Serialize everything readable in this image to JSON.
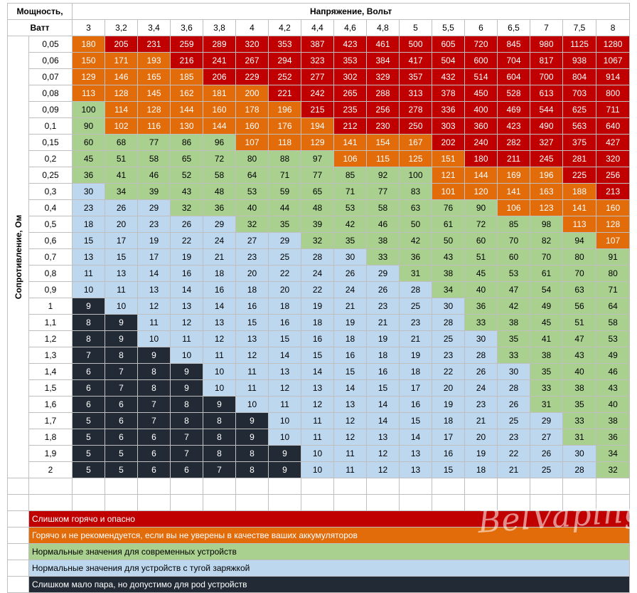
{
  "header": {
    "power_label_line1": "Мощность,",
    "power_label_line2": "Ватт",
    "voltage_title": "Напряжение, Вольт",
    "resistance_title": "Сопротивление, Ом"
  },
  "voltages": [
    "3",
    "3,2",
    "3,4",
    "3,6",
    "3,8",
    "4",
    "4,2",
    "4,4",
    "4,6",
    "4,8",
    "5",
    "5,5",
    "6",
    "6,5",
    "7",
    "7,5",
    "8"
  ],
  "rows": [
    {
      "r": "0,05",
      "v": [
        "180",
        "205",
        "231",
        "259",
        "289",
        "320",
        "353",
        "387",
        "423",
        "461",
        "500",
        "605",
        "720",
        "845",
        "980",
        "1125",
        "1280"
      ],
      "c": [
        "o",
        "r",
        "r",
        "r",
        "r",
        "r",
        "r",
        "r",
        "r",
        "r",
        "r",
        "r",
        "r",
        "r",
        "r",
        "r",
        "r"
      ]
    },
    {
      "r": "0,06",
      "v": [
        "150",
        "171",
        "193",
        "216",
        "241",
        "267",
        "294",
        "323",
        "353",
        "384",
        "417",
        "504",
        "600",
        "704",
        "817",
        "938",
        "1067"
      ],
      "c": [
        "o",
        "o",
        "o",
        "r",
        "r",
        "r",
        "r",
        "r",
        "r",
        "r",
        "r",
        "r",
        "r",
        "r",
        "r",
        "r",
        "r"
      ]
    },
    {
      "r": "0,07",
      "v": [
        "129",
        "146",
        "165",
        "185",
        "206",
        "229",
        "252",
        "277",
        "302",
        "329",
        "357",
        "432",
        "514",
        "604",
        "700",
        "804",
        "914"
      ],
      "c": [
        "o",
        "o",
        "o",
        "o",
        "r",
        "r",
        "r",
        "r",
        "r",
        "r",
        "r",
        "r",
        "r",
        "r",
        "r",
        "r",
        "r"
      ]
    },
    {
      "r": "0,08",
      "v": [
        "113",
        "128",
        "145",
        "162",
        "181",
        "200",
        "221",
        "242",
        "265",
        "288",
        "313",
        "378",
        "450",
        "528",
        "613",
        "703",
        "800"
      ],
      "c": [
        "o",
        "o",
        "o",
        "o",
        "o",
        "o",
        "r",
        "r",
        "r",
        "r",
        "r",
        "r",
        "r",
        "r",
        "r",
        "r",
        "r"
      ]
    },
    {
      "r": "0,09",
      "v": [
        "100",
        "114",
        "128",
        "144",
        "160",
        "178",
        "196",
        "215",
        "235",
        "256",
        "278",
        "336",
        "400",
        "469",
        "544",
        "625",
        "711"
      ],
      "c": [
        "g",
        "o",
        "o",
        "o",
        "o",
        "o",
        "o",
        "r",
        "r",
        "r",
        "r",
        "r",
        "r",
        "r",
        "r",
        "r",
        "r"
      ]
    },
    {
      "r": "0,1",
      "v": [
        "90",
        "102",
        "116",
        "130",
        "144",
        "160",
        "176",
        "194",
        "212",
        "230",
        "250",
        "303",
        "360",
        "423",
        "490",
        "563",
        "640"
      ],
      "c": [
        "g",
        "o",
        "o",
        "o",
        "o",
        "o",
        "o",
        "o",
        "r",
        "r",
        "r",
        "r",
        "r",
        "r",
        "r",
        "r",
        "r"
      ]
    },
    {
      "r": "0,15",
      "v": [
        "60",
        "68",
        "77",
        "86",
        "96",
        "107",
        "118",
        "129",
        "141",
        "154",
        "167",
        "202",
        "240",
        "282",
        "327",
        "375",
        "427"
      ],
      "c": [
        "g",
        "g",
        "g",
        "g",
        "g",
        "o",
        "o",
        "o",
        "o",
        "o",
        "o",
        "r",
        "r",
        "r",
        "r",
        "r",
        "r"
      ]
    },
    {
      "r": "0,2",
      "v": [
        "45",
        "51",
        "58",
        "65",
        "72",
        "80",
        "88",
        "97",
        "106",
        "115",
        "125",
        "151",
        "180",
        "211",
        "245",
        "281",
        "320"
      ],
      "c": [
        "g",
        "g",
        "g",
        "g",
        "g",
        "g",
        "g",
        "g",
        "o",
        "o",
        "o",
        "o",
        "r",
        "r",
        "r",
        "r",
        "r"
      ]
    },
    {
      "r": "0,25",
      "v": [
        "36",
        "41",
        "46",
        "52",
        "58",
        "64",
        "71",
        "77",
        "85",
        "92",
        "100",
        "121",
        "144",
        "169",
        "196",
        "225",
        "256"
      ],
      "c": [
        "g",
        "g",
        "g",
        "g",
        "g",
        "g",
        "g",
        "g",
        "g",
        "g",
        "g",
        "o",
        "o",
        "o",
        "o",
        "r",
        "r"
      ]
    },
    {
      "r": "0,3",
      "v": [
        "30",
        "34",
        "39",
        "43",
        "48",
        "53",
        "59",
        "65",
        "71",
        "77",
        "83",
        "101",
        "120",
        "141",
        "163",
        "188",
        "213"
      ],
      "c": [
        "b",
        "g",
        "g",
        "g",
        "g",
        "g",
        "g",
        "g",
        "g",
        "g",
        "g",
        "o",
        "o",
        "o",
        "o",
        "o",
        "r"
      ]
    },
    {
      "r": "0,4",
      "v": [
        "23",
        "26",
        "29",
        "32",
        "36",
        "40",
        "44",
        "48",
        "53",
        "58",
        "63",
        "76",
        "90",
        "106",
        "123",
        "141",
        "160"
      ],
      "c": [
        "b",
        "b",
        "b",
        "g",
        "g",
        "g",
        "g",
        "g",
        "g",
        "g",
        "g",
        "g",
        "g",
        "o",
        "o",
        "o",
        "o"
      ]
    },
    {
      "r": "0,5",
      "v": [
        "18",
        "20",
        "23",
        "26",
        "29",
        "32",
        "35",
        "39",
        "42",
        "46",
        "50",
        "61",
        "72",
        "85",
        "98",
        "113",
        "128"
      ],
      "c": [
        "b",
        "b",
        "b",
        "b",
        "b",
        "g",
        "g",
        "g",
        "g",
        "g",
        "g",
        "g",
        "g",
        "g",
        "g",
        "o",
        "o"
      ]
    },
    {
      "r": "0,6",
      "v": [
        "15",
        "17",
        "19",
        "22",
        "24",
        "27",
        "29",
        "32",
        "35",
        "38",
        "42",
        "50",
        "60",
        "70",
        "82",
        "94",
        "107"
      ],
      "c": [
        "b",
        "b",
        "b",
        "b",
        "b",
        "b",
        "b",
        "g",
        "g",
        "g",
        "g",
        "g",
        "g",
        "g",
        "g",
        "g",
        "o"
      ]
    },
    {
      "r": "0,7",
      "v": [
        "13",
        "15",
        "17",
        "19",
        "21",
        "23",
        "25",
        "28",
        "30",
        "33",
        "36",
        "43",
        "51",
        "60",
        "70",
        "80",
        "91"
      ],
      "c": [
        "b",
        "b",
        "b",
        "b",
        "b",
        "b",
        "b",
        "b",
        "b",
        "g",
        "g",
        "g",
        "g",
        "g",
        "g",
        "g",
        "g"
      ]
    },
    {
      "r": "0,8",
      "v": [
        "11",
        "13",
        "14",
        "16",
        "18",
        "20",
        "22",
        "24",
        "26",
        "29",
        "31",
        "38",
        "45",
        "53",
        "61",
        "70",
        "80"
      ],
      "c": [
        "b",
        "b",
        "b",
        "b",
        "b",
        "b",
        "b",
        "b",
        "b",
        "b",
        "g",
        "g",
        "g",
        "g",
        "g",
        "g",
        "g"
      ]
    },
    {
      "r": "0,9",
      "v": [
        "10",
        "11",
        "13",
        "14",
        "16",
        "18",
        "20",
        "22",
        "24",
        "26",
        "28",
        "34",
        "40",
        "47",
        "54",
        "63",
        "71"
      ],
      "c": [
        "b",
        "b",
        "b",
        "b",
        "b",
        "b",
        "b",
        "b",
        "b",
        "b",
        "b",
        "g",
        "g",
        "g",
        "g",
        "g",
        "g"
      ]
    },
    {
      "r": "1",
      "v": [
        "9",
        "10",
        "12",
        "13",
        "14",
        "16",
        "18",
        "19",
        "21",
        "23",
        "25",
        "30",
        "36",
        "42",
        "49",
        "56",
        "64"
      ],
      "c": [
        "d",
        "b",
        "b",
        "b",
        "b",
        "b",
        "b",
        "b",
        "b",
        "b",
        "b",
        "b",
        "g",
        "g",
        "g",
        "g",
        "g"
      ]
    },
    {
      "r": "1,1",
      "v": [
        "8",
        "9",
        "11",
        "12",
        "13",
        "15",
        "16",
        "18",
        "19",
        "21",
        "23",
        "28",
        "33",
        "38",
        "45",
        "51",
        "58"
      ],
      "c": [
        "d",
        "d",
        "b",
        "b",
        "b",
        "b",
        "b",
        "b",
        "b",
        "b",
        "b",
        "b",
        "g",
        "g",
        "g",
        "g",
        "g"
      ]
    },
    {
      "r": "1,2",
      "v": [
        "8",
        "9",
        "10",
        "11",
        "12",
        "13",
        "15",
        "16",
        "18",
        "19",
        "21",
        "25",
        "30",
        "35",
        "41",
        "47",
        "53"
      ],
      "c": [
        "d",
        "d",
        "b",
        "b",
        "b",
        "b",
        "b",
        "b",
        "b",
        "b",
        "b",
        "b",
        "b",
        "g",
        "g",
        "g",
        "g"
      ]
    },
    {
      "r": "1,3",
      "v": [
        "7",
        "8",
        "9",
        "10",
        "11",
        "12",
        "14",
        "15",
        "16",
        "18",
        "19",
        "23",
        "28",
        "33",
        "38",
        "43",
        "49"
      ],
      "c": [
        "d",
        "d",
        "d",
        "b",
        "b",
        "b",
        "b",
        "b",
        "b",
        "b",
        "b",
        "b",
        "b",
        "g",
        "g",
        "g",
        "g"
      ]
    },
    {
      "r": "1,4",
      "v": [
        "6",
        "7",
        "8",
        "9",
        "10",
        "11",
        "13",
        "14",
        "15",
        "16",
        "18",
        "22",
        "26",
        "30",
        "35",
        "40",
        "46"
      ],
      "c": [
        "d",
        "d",
        "d",
        "d",
        "b",
        "b",
        "b",
        "b",
        "b",
        "b",
        "b",
        "b",
        "b",
        "b",
        "g",
        "g",
        "g"
      ]
    },
    {
      "r": "1,5",
      "v": [
        "6",
        "7",
        "8",
        "9",
        "10",
        "11",
        "12",
        "13",
        "14",
        "15",
        "17",
        "20",
        "24",
        "28",
        "33",
        "38",
        "43"
      ],
      "c": [
        "d",
        "d",
        "d",
        "d",
        "b",
        "b",
        "b",
        "b",
        "b",
        "b",
        "b",
        "b",
        "b",
        "b",
        "g",
        "g",
        "g"
      ]
    },
    {
      "r": "1,6",
      "v": [
        "6",
        "6",
        "7",
        "8",
        "9",
        "10",
        "11",
        "12",
        "13",
        "14",
        "16",
        "19",
        "23",
        "26",
        "31",
        "35",
        "40"
      ],
      "c": [
        "d",
        "d",
        "d",
        "d",
        "d",
        "b",
        "b",
        "b",
        "b",
        "b",
        "b",
        "b",
        "b",
        "b",
        "g",
        "g",
        "g"
      ]
    },
    {
      "r": "1,7",
      "v": [
        "5",
        "6",
        "7",
        "8",
        "8",
        "9",
        "10",
        "11",
        "12",
        "14",
        "15",
        "18",
        "21",
        "25",
        "29",
        "33",
        "38"
      ],
      "c": [
        "d",
        "d",
        "d",
        "d",
        "d",
        "d",
        "b",
        "b",
        "b",
        "b",
        "b",
        "b",
        "b",
        "b",
        "b",
        "g",
        "g"
      ]
    },
    {
      "r": "1,8",
      "v": [
        "5",
        "6",
        "6",
        "7",
        "8",
        "9",
        "10",
        "11",
        "12",
        "13",
        "14",
        "17",
        "20",
        "23",
        "27",
        "31",
        "36"
      ],
      "c": [
        "d",
        "d",
        "d",
        "d",
        "d",
        "d",
        "b",
        "b",
        "b",
        "b",
        "b",
        "b",
        "b",
        "b",
        "b",
        "g",
        "g"
      ]
    },
    {
      "r": "1,9",
      "v": [
        "5",
        "5",
        "6",
        "7",
        "8",
        "8",
        "9",
        "10",
        "11",
        "12",
        "13",
        "16",
        "19",
        "22",
        "26",
        "30",
        "34"
      ],
      "c": [
        "d",
        "d",
        "d",
        "d",
        "d",
        "d",
        "d",
        "b",
        "b",
        "b",
        "b",
        "b",
        "b",
        "b",
        "b",
        "b",
        "g"
      ]
    },
    {
      "r": "2",
      "v": [
        "5",
        "5",
        "6",
        "6",
        "7",
        "8",
        "9",
        "10",
        "11",
        "12",
        "13",
        "15",
        "18",
        "21",
        "25",
        "28",
        "32"
      ],
      "c": [
        "d",
        "d",
        "d",
        "d",
        "d",
        "d",
        "d",
        "b",
        "b",
        "b",
        "b",
        "b",
        "b",
        "b",
        "b",
        "b",
        "g"
      ]
    }
  ],
  "legend": [
    {
      "text": "Слишком горячо и опасно",
      "cls": "c-red"
    },
    {
      "text": "Горячо и не рекомендуется, если вы не уверены в качестве ваших аккумуляторов",
      "cls": "c-orange"
    },
    {
      "text": "Нормальные значения для современных устройств",
      "cls": "c-green"
    },
    {
      "text": "Нормальные значения для устройств с тугой заряжкой",
      "cls": "c-blue"
    },
    {
      "text": "Слишком мало пара, но допустимо для pod устройств",
      "cls": "c-dark"
    }
  ],
  "watermark": "BelVaping",
  "colors": {
    "red": "#c00000",
    "orange": "#e26b0a",
    "green": "#a9d08e",
    "blue": "#bdd7ee",
    "dark": "#222b35"
  }
}
